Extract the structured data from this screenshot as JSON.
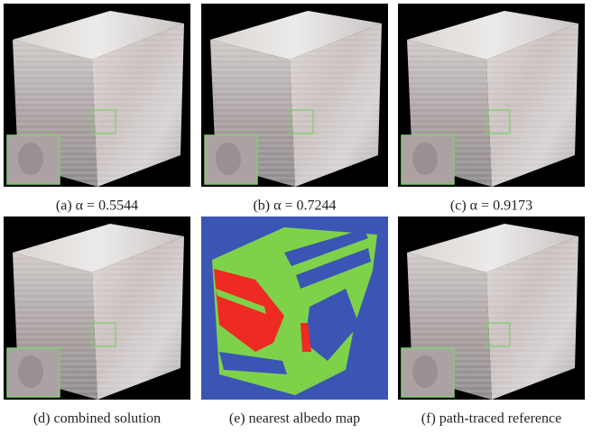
{
  "panels": [
    {
      "caption": "(a) α = 0.5544"
    },
    {
      "caption": "(b) α = 0.7244"
    },
    {
      "caption": "(c) α = 0.9173"
    },
    {
      "caption": "(d) combined solution"
    },
    {
      "caption": "(e) nearest albedo map"
    },
    {
      "caption": "(f) path-traced reference"
    }
  ]
}
